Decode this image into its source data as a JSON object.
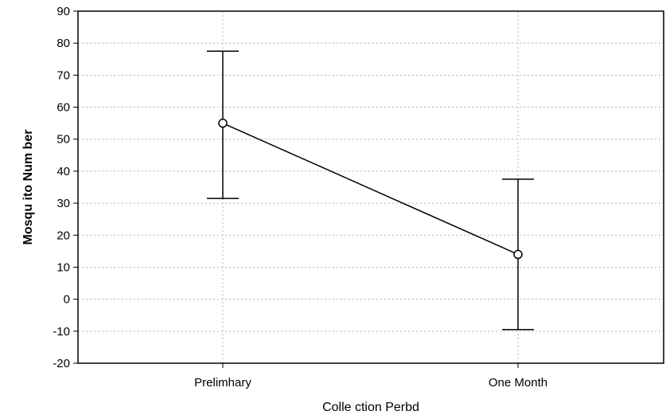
{
  "chart_data": {
    "type": "line",
    "categories": [
      "Prelimhary",
      "One Month"
    ],
    "series": [
      {
        "values": [
          55,
          14
        ],
        "error_upper": [
          77.5,
          37.5
        ],
        "error_lower": [
          31.5,
          -9.5
        ],
        "marker": "open-circle"
      }
    ],
    "xlabel": "Colle ction Perbd",
    "ylabel": "Mosqu ito Num ber",
    "ylim": [
      -20,
      90
    ],
    "yticks": [
      -20,
      -10,
      0,
      10,
      20,
      30,
      40,
      50,
      60,
      70,
      80,
      90
    ],
    "grid": true,
    "grid_style": "dotted",
    "colors": {
      "line": "#000000",
      "grid": "#b5b5b5",
      "background": "#ffffff"
    }
  }
}
